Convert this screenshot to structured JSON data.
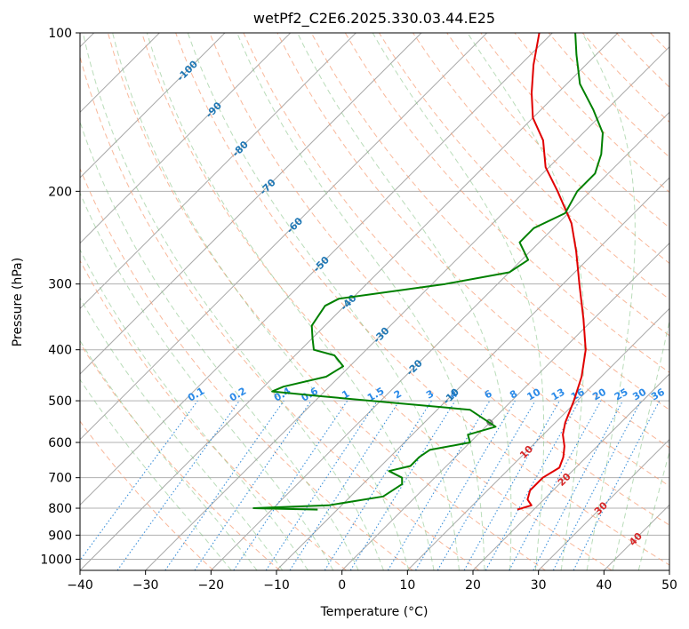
{
  "chart_data": {
    "type": "line",
    "title": "wetPf2_C2E6.2025.330.03.44.E25",
    "xlabel": "Temperature (°C)",
    "ylabel": "Pressure (hPa)",
    "xlim": [
      -40,
      50
    ],
    "ylim": [
      1050,
      100
    ],
    "y_scale": "log",
    "skew_degrees": 45,
    "x_ticks": [
      "−40",
      "−30",
      "−20",
      "−10",
      "0",
      "10",
      "20",
      "30",
      "40",
      "50"
    ],
    "y_ticks": [
      "100",
      "200",
      "300",
      "400",
      "500",
      "600",
      "700",
      "800",
      "900",
      "1000"
    ],
    "y_tick_values": [
      100,
      200,
      300,
      400,
      500,
      600,
      700,
      800,
      900,
      1000
    ],
    "grid": true,
    "isotherm_labels": [
      "-100",
      "-90",
      "-80",
      "-70",
      "-60",
      "-50",
      "-40",
      "-30",
      "-20",
      "-10",
      "0",
      "10",
      "20",
      "30",
      "40"
    ],
    "isotherm_label_positions": [
      {
        "t": -100,
        "p": 118
      },
      {
        "t": -90,
        "p": 140
      },
      {
        "t": -80,
        "p": 166
      },
      {
        "t": -70,
        "p": 196
      },
      {
        "t": -60,
        "p": 232
      },
      {
        "t": -50,
        "p": 275
      },
      {
        "t": -40,
        "p": 325
      },
      {
        "t": -30,
        "p": 375
      },
      {
        "t": -20,
        "p": 432
      },
      {
        "t": -10,
        "p": 490
      },
      {
        "t": 0,
        "p": 550
      },
      {
        "t": 10,
        "p": 625
      },
      {
        "t": 20,
        "p": 705
      },
      {
        "t": 30,
        "p": 800
      },
      {
        "t": 40,
        "p": 915
      }
    ],
    "mixing_ratio_labels": [
      "0.1",
      "0.2",
      "0.4",
      "0.6",
      "1",
      "1.5",
      "2",
      "3",
      "4",
      "6",
      "8",
      "10",
      "13",
      "16",
      "20",
      "25",
      "30",
      "36"
    ],
    "mixing_ratio_values": [
      0.1,
      0.2,
      0.4,
      0.6,
      1,
      1.5,
      2,
      3,
      4,
      6,
      8,
      10,
      13,
      16,
      20,
      25,
      30,
      36
    ],
    "mixing_ratio_label_pressure": 500,
    "series": [
      {
        "color": "#e00000",
        "points": [
          {
            "p": 805,
            "t": 17.5
          },
          {
            "p": 790,
            "t": 19
          },
          {
            "p": 770,
            "t": 17.5
          },
          {
            "p": 740,
            "t": 16.5
          },
          {
            "p": 700,
            "t": 16.5
          },
          {
            "p": 670,
            "t": 17.5
          },
          {
            "p": 640,
            "t": 16.5
          },
          {
            "p": 610,
            "t": 15
          },
          {
            "p": 580,
            "t": 13
          },
          {
            "p": 550,
            "t": 11.5
          },
          {
            "p": 500,
            "t": 9.5
          },
          {
            "p": 450,
            "t": 7
          },
          {
            "p": 400,
            "t": 3.5
          },
          {
            "p": 350,
            "t": -1.5
          },
          {
            "p": 300,
            "t": -7.5
          },
          {
            "p": 260,
            "t": -13
          },
          {
            "p": 230,
            "t": -18
          },
          {
            "p": 200,
            "t": -25
          },
          {
            "p": 180,
            "t": -30.5
          },
          {
            "p": 160,
            "t": -35
          },
          {
            "p": 145,
            "t": -40
          },
          {
            "p": 130,
            "t": -44
          },
          {
            "p": 115,
            "t": -48
          },
          {
            "p": 100,
            "t": -52
          }
        ]
      },
      {
        "color": "#008000",
        "points": [
          {
            "p": 805,
            "t": -13
          },
          {
            "p": 800,
            "t": -23
          },
          {
            "p": 790,
            "t": -12
          },
          {
            "p": 760,
            "t": -5
          },
          {
            "p": 720,
            "t": -4
          },
          {
            "p": 700,
            "t": -5
          },
          {
            "p": 680,
            "t": -8
          },
          {
            "p": 665,
            "t": -5.5
          },
          {
            "p": 640,
            "t": -5.5
          },
          {
            "p": 620,
            "t": -5
          },
          {
            "p": 600,
            "t": 0
          },
          {
            "p": 580,
            "t": -1.5
          },
          {
            "p": 560,
            "t": 1.5
          },
          {
            "p": 520,
            "t": -5
          },
          {
            "p": 490,
            "t": -30
          },
          {
            "p": 480,
            "t": -38
          },
          {
            "p": 470,
            "t": -37
          },
          {
            "p": 450,
            "t": -32
          },
          {
            "p": 430,
            "t": -31
          },
          {
            "p": 410,
            "t": -34
          },
          {
            "p": 400,
            "t": -38
          },
          {
            "p": 380,
            "t": -40
          },
          {
            "p": 360,
            "t": -42
          },
          {
            "p": 330,
            "t": -43
          },
          {
            "p": 320,
            "t": -42
          },
          {
            "p": 300,
            "t": -28
          },
          {
            "p": 285,
            "t": -20
          },
          {
            "p": 270,
            "t": -19
          },
          {
            "p": 250,
            "t": -23
          },
          {
            "p": 235,
            "t": -23
          },
          {
            "p": 220,
            "t": -20.5
          },
          {
            "p": 200,
            "t": -22
          },
          {
            "p": 185,
            "t": -22
          },
          {
            "p": 170,
            "t": -24
          },
          {
            "p": 155,
            "t": -27
          },
          {
            "p": 140,
            "t": -32
          },
          {
            "p": 125,
            "t": -38
          },
          {
            "p": 110,
            "t": -43
          },
          {
            "p": 100,
            "t": -46.5
          }
        ]
      }
    ]
  }
}
